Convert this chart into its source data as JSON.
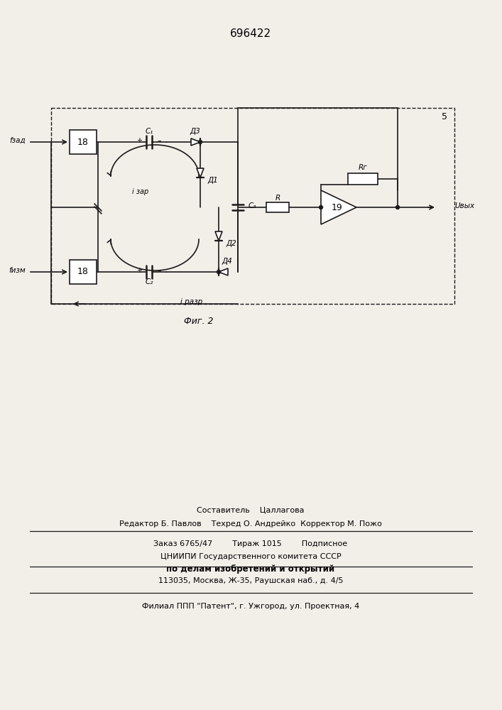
{
  "title": "696422",
  "fig_label": "Фиг. 2",
  "block5_label": "5",
  "f_zad_label": "fзад",
  "f_izm_label": "fизм",
  "u_vyx_label": "Uвых",
  "i_zar_label": "i зар",
  "i_razr_label": "i разр",
  "C1_label": "C₁",
  "C2_label": "C₂",
  "C3_label": "C₃",
  "D1_label": "Д1",
  "D2_label": "Д2",
  "D3_label": "Д3",
  "D4_label": "Д4",
  "R_label": "R",
  "Rg_label": "Rг",
  "block18_label": "18",
  "block19_label": "19",
  "bg_color": "#f2efe9",
  "line_color": "#1a1a1a",
  "footer_line1": "Составитель    Цаллагова",
  "footer_line2": "Редактор Б. Павлов    Техред О. Андрейко  Корректор М. Пожо",
  "footer_line3": "Заказ 6765/47        Тираж 1015        Подписное",
  "footer_line4": "ЦНИИПИ Государственного комитета СССР",
  "footer_line5": "по делам изобретений и открытий",
  "footer_line6": "113035, Москва, Ж-35, Раушская наб., д. 4/5",
  "footer_line7": "Филиал ППП \"Патент\", г. Ужгород, ул. Проектная, 4"
}
